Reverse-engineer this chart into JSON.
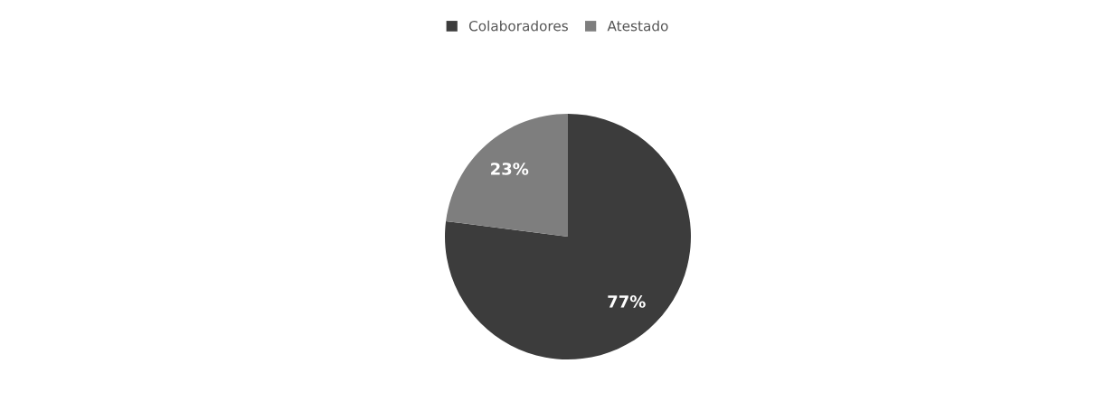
{
  "chart_data": {
    "type": "pie",
    "categories": [
      "Colaboradores",
      "Atestado"
    ],
    "values": [
      77,
      23
    ],
    "colors": [
      "#3c3c3c",
      "#7e7e7e"
    ],
    "value_labels": [
      "77%",
      "23%"
    ],
    "legend": "top"
  }
}
